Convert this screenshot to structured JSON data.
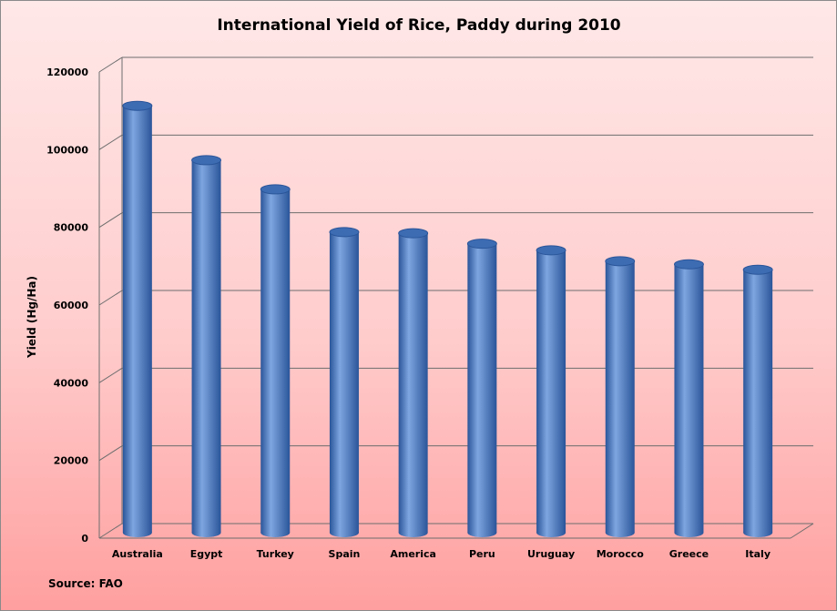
{
  "chart_data": {
    "type": "bar",
    "title": "International Yield of Rice, Paddy during 2010",
    "xlabel": "",
    "ylabel": "Yield (Hg/Ha)",
    "source": "Source: FAO",
    "categories": [
      "Australia",
      "Egypt",
      "Turkey",
      "Spain",
      "America",
      "Peru",
      "Uruguay",
      "Morocco",
      "Greece",
      "Italy"
    ],
    "values": [
      108000,
      94000,
      86500,
      75500,
      75200,
      72500,
      70800,
      68000,
      67200,
      65800
    ],
    "ylim": [
      0,
      120000
    ],
    "yticks": [
      "0",
      "20000",
      "40000",
      "60000",
      "80000",
      "100000",
      "120000"
    ],
    "grid": true,
    "legend": "none",
    "colors": {
      "bar_light": "#7ea6e0",
      "bar_mid": "#4a7cc4",
      "bar_dark": "#2a5599",
      "bar_top": "#3d6cb3",
      "gridline": "#6e6e6e",
      "background_top": "#ffe8e8",
      "background_bottom": "#ff9f9f"
    }
  }
}
